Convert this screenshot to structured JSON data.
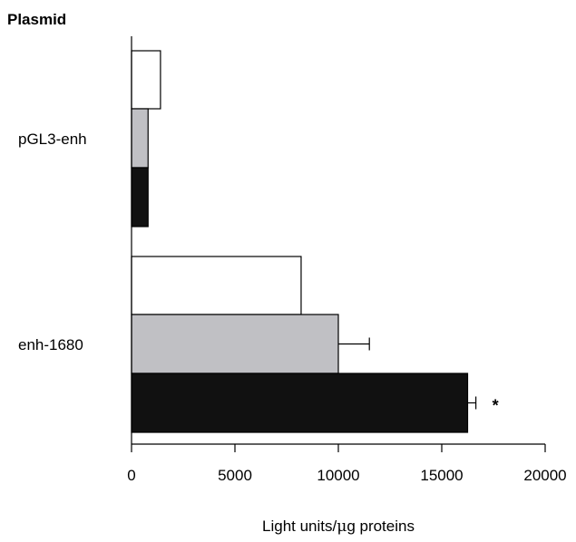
{
  "chart_data": {
    "type": "bar",
    "orientation": "horizontal",
    "heading": "Plasmid",
    "xlabel_prefix": "Light units/",
    "xlabel_mu": "μ",
    "xlabel_suffix": "g proteins",
    "ylabel": "",
    "xlim": [
      0,
      20000
    ],
    "xticks": [
      0,
      5000,
      10000,
      15000,
      20000
    ],
    "grid": false,
    "categories": [
      "pGL3-enh",
      "enh-1680"
    ],
    "series": [
      {
        "fill": "#ffffff",
        "values": [
          1400,
          8200
        ]
      },
      {
        "fill": "#c0c0c4",
        "values": [
          800,
          10000
        ]
      },
      {
        "fill": "#111111",
        "values": [
          800,
          16250
        ]
      }
    ],
    "error_bars": [
      {
        "category": "enh-1680",
        "series_index": 1,
        "upper": 11500
      },
      {
        "category": "enh-1680",
        "series_index": 2,
        "upper": 16650
      }
    ],
    "annotations": [
      {
        "text": "*",
        "category": "enh-1680",
        "series_index": 2
      }
    ]
  }
}
